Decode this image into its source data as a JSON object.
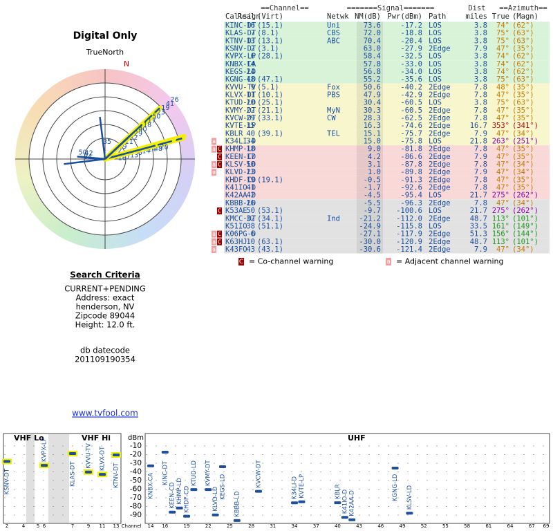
{
  "header": {
    "title": "Digital Only",
    "north_label": "TrueNorth",
    "north_mark": "N"
  },
  "search": {
    "title": "Search Criteria",
    "lines": [
      "CURRENT+PENDING",
      "Address: exact",
      "henderson, NV",
      "Zipcode 89044",
      "Height: 12.0 ft."
    ],
    "db_label": "db datecode",
    "db_code": "201109190354",
    "link": "www.tvfool.com"
  },
  "table": {
    "groups": [
      "==Channel==",
      "=======Signal=======",
      "Dist",
      "==Azimuth=="
    ],
    "headers": [
      "Callsign",
      "Real",
      "(Virt)",
      "Netwk",
      "NM(dB)",
      "Pwr(dBm)",
      "Path",
      "miles",
      "True",
      "(Magn)"
    ],
    "rows": [
      [
        "KINC-DT",
        "16",
        "(15.1)",
        "Uni",
        "73.6",
        "-17.2",
        "LOS",
        "3.8",
        "74°",
        "(62°)"
      ],
      [
        "KLAS-DT",
        "7",
        "(8.1)",
        "CBS",
        "72.0",
        "-18.8",
        "LOS",
        "3.8",
        "75°",
        "(63°)"
      ],
      [
        "KTNV-DT",
        "13",
        "(13.1)",
        "ABC",
        "70.4",
        "-20.4",
        "LOS",
        "3.8",
        "75°",
        "(63°)"
      ],
      [
        "KSNV-DT",
        "2",
        "(3.1)",
        "",
        "63.0",
        "-27.9",
        "2Edge",
        "7.9",
        "47°",
        "(35°)"
      ],
      [
        "KVPX-LP",
        "6",
        "(28.1)",
        "",
        "58.4",
        "-32.5",
        "LOS",
        "3.8",
        "74°",
        "(62°)"
      ],
      [
        "KNBX-CA",
        "14",
        "",
        "",
        "57.8",
        "-33.0",
        "LOS",
        "3.8",
        "74°",
        "(62°)"
      ],
      [
        "KEGS-LD",
        "24",
        "",
        "",
        "56.8",
        "-34.0",
        "LOS",
        "3.8",
        "74°",
        "(62°)"
      ],
      [
        "KGNG-LD",
        "48",
        "(47.1)",
        "",
        "55.2",
        "-35.6",
        "LOS",
        "3.8",
        "75°",
        "(63°)"
      ],
      [
        "KVVU-TV",
        "9",
        "(5.1)",
        "Fox",
        "50.6",
        "-40.2",
        "2Edge",
        "7.8",
        "48°",
        "(35°)"
      ],
      [
        "KLVX-DT",
        "11",
        "(10.1)",
        "PBS",
        "47.9",
        "-42.9",
        "2Edge",
        "7.8",
        "47°",
        "(35°)"
      ],
      [
        "KTUD-LD",
        "20",
        "(25.1)",
        "",
        "30.4",
        "-60.5",
        "LOS",
        "3.8",
        "75°",
        "(63°)"
      ],
      [
        "KVMY-DT",
        "22",
        "(21.1)",
        "MyN",
        "30.3",
        "-60.5",
        "2Edge",
        "7.8",
        "47°",
        "(35°)"
      ],
      [
        "KVCW-DT",
        "29",
        "(33.1)",
        "CW",
        "28.3",
        "-62.5",
        "2Edge",
        "7.8",
        "47°",
        "(35°)"
      ],
      [
        "KVTE-LP",
        "35",
        "",
        "",
        "16.3",
        "-74.6",
        "2Edge",
        "16.7",
        "353°",
        "(341°)"
      ],
      [
        "KBLR",
        "40",
        "(39.1)",
        "TEL",
        "15.1",
        "-75.7",
        "2Edge",
        "7.9",
        "47°",
        "(34°)"
      ],
      [
        "K34LI-D",
        "34",
        "",
        "",
        "15.0",
        "-75.8",
        "LOS",
        "21.8",
        "263°",
        "(251°)"
      ],
      [
        "KHMP-LD",
        "18",
        "",
        "",
        "9.0",
        "-81.8",
        "2Edge",
        "7.8",
        "47°",
        "(35°)"
      ],
      [
        "KEEN-CD",
        "17",
        "",
        "",
        "4.2",
        "-86.6",
        "2Edge",
        "7.9",
        "47°",
        "(35°)"
      ],
      [
        "KLSV-LD",
        "50",
        "",
        "",
        "3.1",
        "-87.8",
        "2Edge",
        "7.8",
        "47°",
        "(34°)"
      ],
      [
        "KLVD-LD",
        "23",
        "",
        "",
        "1.0",
        "-89.8",
        "2Edge",
        "7.9",
        "47°",
        "(34°)"
      ],
      [
        "KHDF-CD",
        "19",
        "(19.1)",
        "",
        "-0.5",
        "-91.3",
        "2Edge",
        "7.8",
        "47°",
        "(35°)"
      ],
      [
        "K41IO-D",
        "41",
        "",
        "",
        "-1.7",
        "-92.6",
        "2Edge",
        "7.8",
        "47°",
        "(35°)"
      ],
      [
        "K42AA-D",
        "42",
        "",
        "",
        "-4.5",
        "-95.4",
        "LOS",
        "21.7",
        "275°",
        "(262°)"
      ],
      [
        "KBBB-LD",
        "26",
        "",
        "",
        "-5.5",
        "-96.3",
        "2Edge",
        "7.8",
        "47°",
        "(34°)"
      ],
      [
        "K53AE",
        "50",
        "(53.1)",
        "",
        "-9.7",
        "-100.6",
        "LOS",
        "21.7",
        "275°",
        "(262°)"
      ],
      [
        "KMCC-DT",
        "32",
        "(34.1)",
        "Ind",
        "-21.2",
        "-112.0",
        "2Edge",
        "48.7",
        "113°",
        "(101°)"
      ],
      [
        "K51IO",
        "38",
        "(51.1)",
        "",
        "-24.9",
        "-115.8",
        "LOS",
        "33.5",
        "161°",
        "(149°)"
      ],
      [
        "K06PG-D",
        "6",
        "",
        "",
        "-27.1",
        "-117.9",
        "2Edge",
        "51.3",
        "156°",
        "(144°)"
      ],
      [
        "K63HJ",
        "10",
        "(63.1)",
        "",
        "-30.0",
        "-120.9",
        "2Edge",
        "48.7",
        "113°",
        "(101°)"
      ],
      [
        "K43FO",
        "43",
        "(43.1)",
        "",
        "-30.6",
        "-121.4",
        "2Edge",
        "7.9",
        "47°",
        "(34°)"
      ]
    ],
    "row_colors": [
      "#d8f3d8",
      "#d8f3d8",
      "#d8f3d8",
      "#d8f3d8",
      "#d8f3d8",
      "#d8f3d8",
      "#d8f3d8",
      "#d8f3d8",
      "#f8f6cc",
      "#f8f6cc",
      "#f8f6cc",
      "#f8f6cc",
      "#f8f6cc",
      "#f8f6cc",
      "#f8f6cc",
      "#f8f6cc",
      "#f9d8d8",
      "#f9d8d8",
      "#f9d8d8",
      "#f9d8d8",
      "#f9d8d8",
      "#f9d8d8",
      "#f9d8d8",
      "#e2e2e2",
      "#e2e2e2",
      "#e2e2e2",
      "#e2e2e2",
      "#e2e2e2",
      "#e2e2e2",
      "#e2e2e2"
    ],
    "az_colors": [
      "#c47a00",
      "#c47a00",
      "#c47a00",
      "#c47a00",
      "#c47a00",
      "#c47a00",
      "#c47a00",
      "#c47a00",
      "#c47a00",
      "#c47a00",
      "#c47a00",
      "#c47a00",
      "#c47a00",
      "#c00000",
      "#c47a00",
      "#8a00a8",
      "#c47a00",
      "#c47a00",
      "#c47a00",
      "#c47a00",
      "#c47a00",
      "#c47a00",
      "#8a00a8",
      "#c47a00",
      "#8a00a8",
      "#1f9a1f",
      "#1f9a1f",
      "#1f9a1f",
      "#1f9a1f",
      "#c47a00"
    ],
    "warnings": [
      [],
      [],
      [],
      [],
      [],
      [],
      [],
      [],
      [],
      [],
      [],
      [],
      [],
      [],
      [],
      [
        "a"
      ],
      [
        "a",
        "C"
      ],
      [
        "C"
      ],
      [
        "a",
        "C"
      ],
      [
        "a"
      ],
      [],
      [],
      [],
      [],
      [
        "C"
      ],
      [],
      [],
      [
        "a",
        "C"
      ],
      [
        "a",
        "C"
      ],
      [
        "a"
      ]
    ]
  },
  "legend": {
    "co_mark": "C",
    "co_text": "= Co-channel warning",
    "adj_mark": "a",
    "adj_text": "= Adjacent channel warning"
  },
  "spectrum": {
    "vhf_lo": "VHF Lo",
    "vhf_hi": "VHF Hi",
    "uhf": "UHF",
    "y_label": "dBm",
    "x_label": "Channel",
    "ylim": [
      -100,
      0
    ],
    "yticks": [
      -10,
      -20,
      -30,
      -40,
      -50,
      -60,
      -70,
      -80,
      -90
    ],
    "vhf_ticks": [
      2,
      4,
      5,
      6,
      7,
      9,
      11,
      13
    ],
    "uhf_xlim": [
      14,
      69
    ],
    "uhf_ticks": [
      14,
      16,
      19,
      22,
      25,
      28,
      31,
      34,
      37,
      40,
      43,
      46,
      49,
      52,
      55,
      58,
      61,
      64,
      67,
      69
    ]
  }
}
